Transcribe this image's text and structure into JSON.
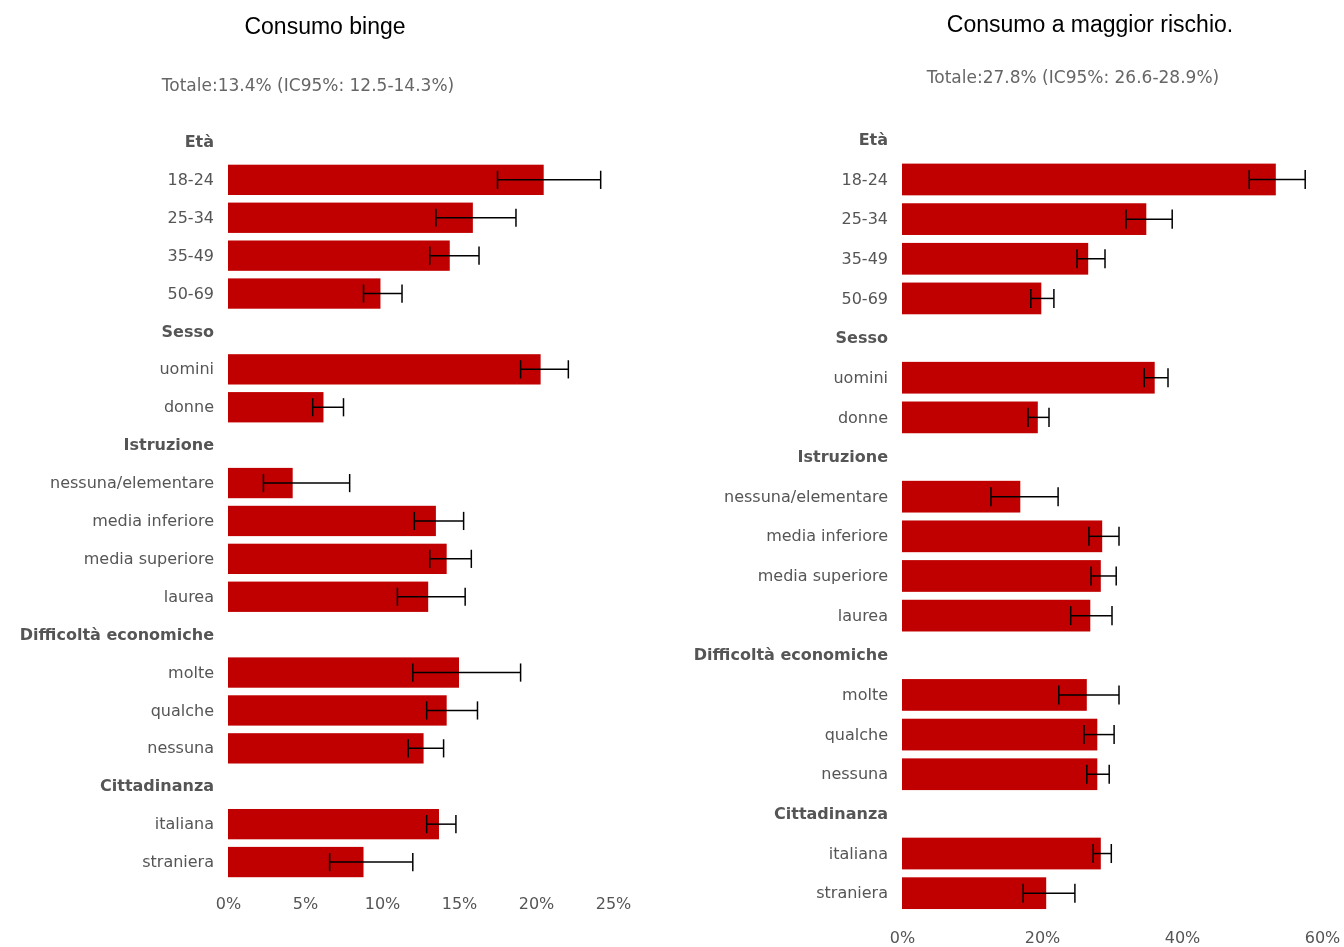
{
  "chart_data": [
    {
      "type": "bar",
      "orientation": "horizontal",
      "title": "Consumo binge",
      "subtitle": "Totale:13.4% (IC95%: 12.5-14.3%)",
      "categories": [
        "Età",
        "18-24",
        "25-34",
        "35-49",
        "50-69",
        "Sesso",
        "uomini",
        "donne",
        "Istruzione",
        "nessuna/elementare",
        "media inferiore",
        "media superiore",
        "laurea",
        "Difficoltà economiche",
        "molte",
        "qualche",
        "nessuna",
        "Cittadinanza",
        "italiana",
        "straniera"
      ],
      "values": [
        null,
        20.5,
        15.9,
        14.4,
        9.9,
        null,
        20.3,
        6.2,
        null,
        4.2,
        13.5,
        14.2,
        13.0,
        null,
        15.0,
        14.2,
        12.7,
        null,
        13.7,
        8.8
      ],
      "errors": [
        null,
        [
          17.5,
          24.2
        ],
        [
          13.5,
          18.7
        ],
        [
          13.1,
          16.3
        ],
        [
          8.8,
          11.3
        ],
        null,
        [
          19.0,
          22.1
        ],
        [
          5.5,
          7.5
        ],
        null,
        [
          2.3,
          7.9
        ],
        [
          12.1,
          15.3
        ],
        [
          13.1,
          15.8
        ],
        [
          11.0,
          15.4
        ],
        null,
        [
          12.0,
          19.0
        ],
        [
          12.9,
          16.2
        ],
        [
          11.7,
          14.0
        ],
        null,
        [
          12.9,
          14.8
        ],
        [
          6.6,
          12.0
        ]
      ],
      "color": "#c00000",
      "xlim": [
        0,
        25
      ],
      "xticks": [
        {
          "value": 0,
          "label": "0%"
        },
        {
          "value": 5,
          "label": "5%"
        },
        {
          "value": 10,
          "label": "10%"
        },
        {
          "value": 15,
          "label": "15%"
        },
        {
          "value": 20,
          "label": "20%"
        },
        {
          "value": 25,
          "label": "25%"
        }
      ],
      "grid": false
    },
    {
      "type": "bar",
      "orientation": "horizontal",
      "title": "Consumo a maggior rischio.",
      "subtitle": "Totale:27.8% (IC95%: 26.6-28.9%)",
      "categories": [
        "Età",
        "18-24",
        "25-34",
        "35-49",
        "50-69",
        "Sesso",
        "uomini",
        "donne",
        "Istruzione",
        "nessuna/elementare",
        "media inferiore",
        "media superiore",
        "laurea",
        "Difficoltà economiche",
        "molte",
        "qualche",
        "nessuna",
        "Cittadinanza",
        "italiana",
        "straniera"
      ],
      "values": [
        null,
        53.4,
        34.9,
        26.6,
        19.9,
        null,
        36.1,
        19.4,
        null,
        16.9,
        28.6,
        28.4,
        26.9,
        null,
        26.4,
        27.9,
        27.9,
        null,
        28.4,
        20.6
      ],
      "errors": [
        null,
        [
          49.6,
          57.6
        ],
        [
          32.0,
          38.6
        ],
        [
          25.0,
          29.0
        ],
        [
          18.4,
          21.7
        ],
        null,
        [
          34.6,
          38.0
        ],
        [
          18.0,
          21.0
        ],
        null,
        [
          12.7,
          22.3
        ],
        [
          26.7,
          31.0
        ],
        [
          27.0,
          30.6
        ],
        [
          24.1,
          30.0
        ],
        null,
        [
          22.4,
          31.0
        ],
        [
          26.0,
          30.3
        ],
        [
          26.4,
          29.6
        ],
        null,
        [
          27.3,
          29.9
        ],
        [
          17.3,
          24.7
        ]
      ],
      "color": "#c00000",
      "xlim": [
        0,
        60
      ],
      "xticks": [
        {
          "value": 0,
          "label": "0%"
        },
        {
          "value": 20,
          "label": "20%"
        },
        {
          "value": 40,
          "label": "40%"
        },
        {
          "value": 60,
          "label": "60%"
        }
      ],
      "grid": false
    }
  ]
}
